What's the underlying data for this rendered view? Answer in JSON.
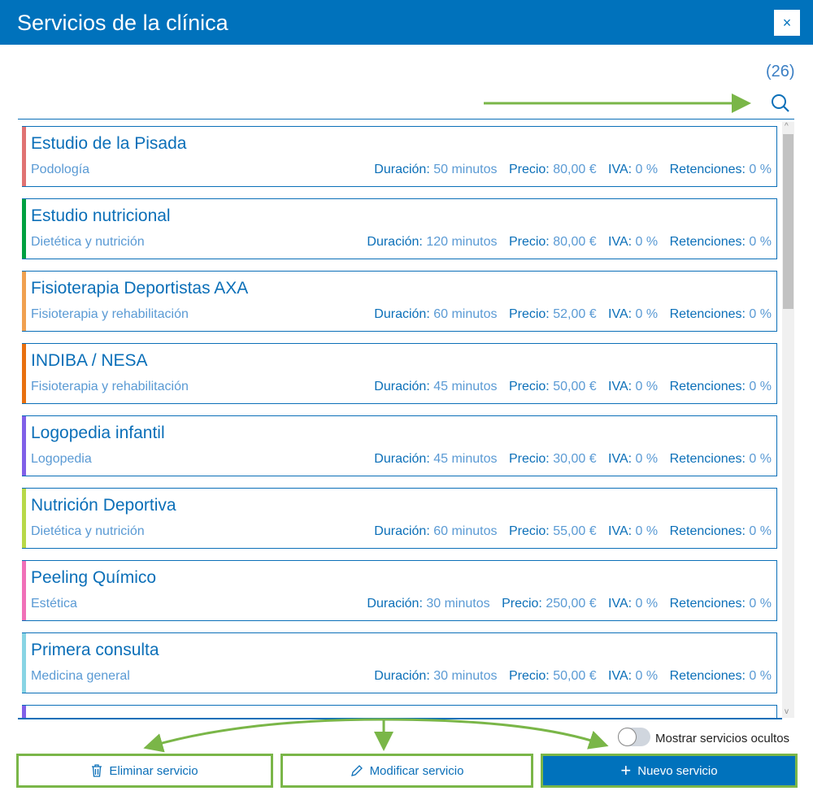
{
  "header": {
    "title": "Servicios de la clínica",
    "close": "×"
  },
  "count": "(26)",
  "labels": {
    "duration": "Duración:",
    "price": "Precio:",
    "iva": "IVA:",
    "ret": "Retenciones:"
  },
  "services": [
    {
      "name": "Estudio de la Pisada",
      "category": "Podología",
      "duration": "50 minutos",
      "price": "80,00 €",
      "iva": "0 %",
      "ret": "0 %",
      "color": "#e07272"
    },
    {
      "name": "Estudio nutricional",
      "category": "Dietética y nutrición",
      "duration": "120 minutos",
      "price": "80,00 €",
      "iva": "0 %",
      "ret": "0 %",
      "color": "#00a040"
    },
    {
      "name": "Fisioterapia Deportistas AXA",
      "category": "Fisioterapia y rehabilitación",
      "duration": "60 minutos",
      "price": "52,00 €",
      "iva": "0 %",
      "ret": "0 %",
      "color": "#f0a050"
    },
    {
      "name": "INDIBA / NESA",
      "category": "Fisioterapia y rehabilitación",
      "duration": "45 minutos",
      "price": "50,00 €",
      "iva": "0 %",
      "ret": "0 %",
      "color": "#e87010"
    },
    {
      "name": "Logopedia infantil",
      "category": "Logopedia",
      "duration": "45 minutos",
      "price": "30,00 €",
      "iva": "0 %",
      "ret": "0 %",
      "color": "#8060e8"
    },
    {
      "name": "Nutrición Deportiva",
      "category": "Dietética y nutrición",
      "duration": "60 minutos",
      "price": "55,00 €",
      "iva": "0 %",
      "ret": "0 %",
      "color": "#b8d848"
    },
    {
      "name": "Peeling Químico",
      "category": "Estética",
      "duration": "30 minutos",
      "price": "250,00 €",
      "iva": "0 %",
      "ret": "0 %",
      "color": "#f070b8"
    },
    {
      "name": "Primera consulta",
      "category": "Medicina general",
      "duration": "30 minutos",
      "price": "50,00 €",
      "iva": "0 %",
      "ret": "0 %",
      "color": "#88d4e4"
    }
  ],
  "partial_color": "#8060e8",
  "toggle": {
    "label": "Mostrar servicios ocultos",
    "on": false
  },
  "buttons": {
    "delete": "Eliminar servicio",
    "edit": "Modificar servicio",
    "new": "Nuevo servicio"
  }
}
